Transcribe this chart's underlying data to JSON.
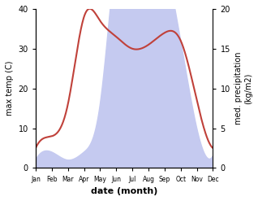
{
  "months": [
    "Jan",
    "Feb",
    "Mar",
    "Apr",
    "May",
    "Jun",
    "Jul",
    "Aug",
    "Sep",
    "Oct",
    "Nov",
    "Dec"
  ],
  "temp": [
    5,
    8,
    16,
    38,
    37,
    33,
    30,
    31,
    34,
    32,
    17,
    5
  ],
  "precip": [
    1,
    2,
    1,
    2,
    8,
    27,
    36,
    40,
    28,
    16,
    5,
    1.5
  ],
  "temp_color": "#c0413a",
  "precip_fill_color": "#c5caf0",
  "ylabel_left": "max temp (C)",
  "ylabel_right": "med. precipitation\n(kg/m2)",
  "xlabel": "date (month)",
  "ylim_left": [
    0,
    40
  ],
  "ylim_right": [
    0,
    20
  ],
  "precip_scale": 2,
  "background": "#ffffff"
}
